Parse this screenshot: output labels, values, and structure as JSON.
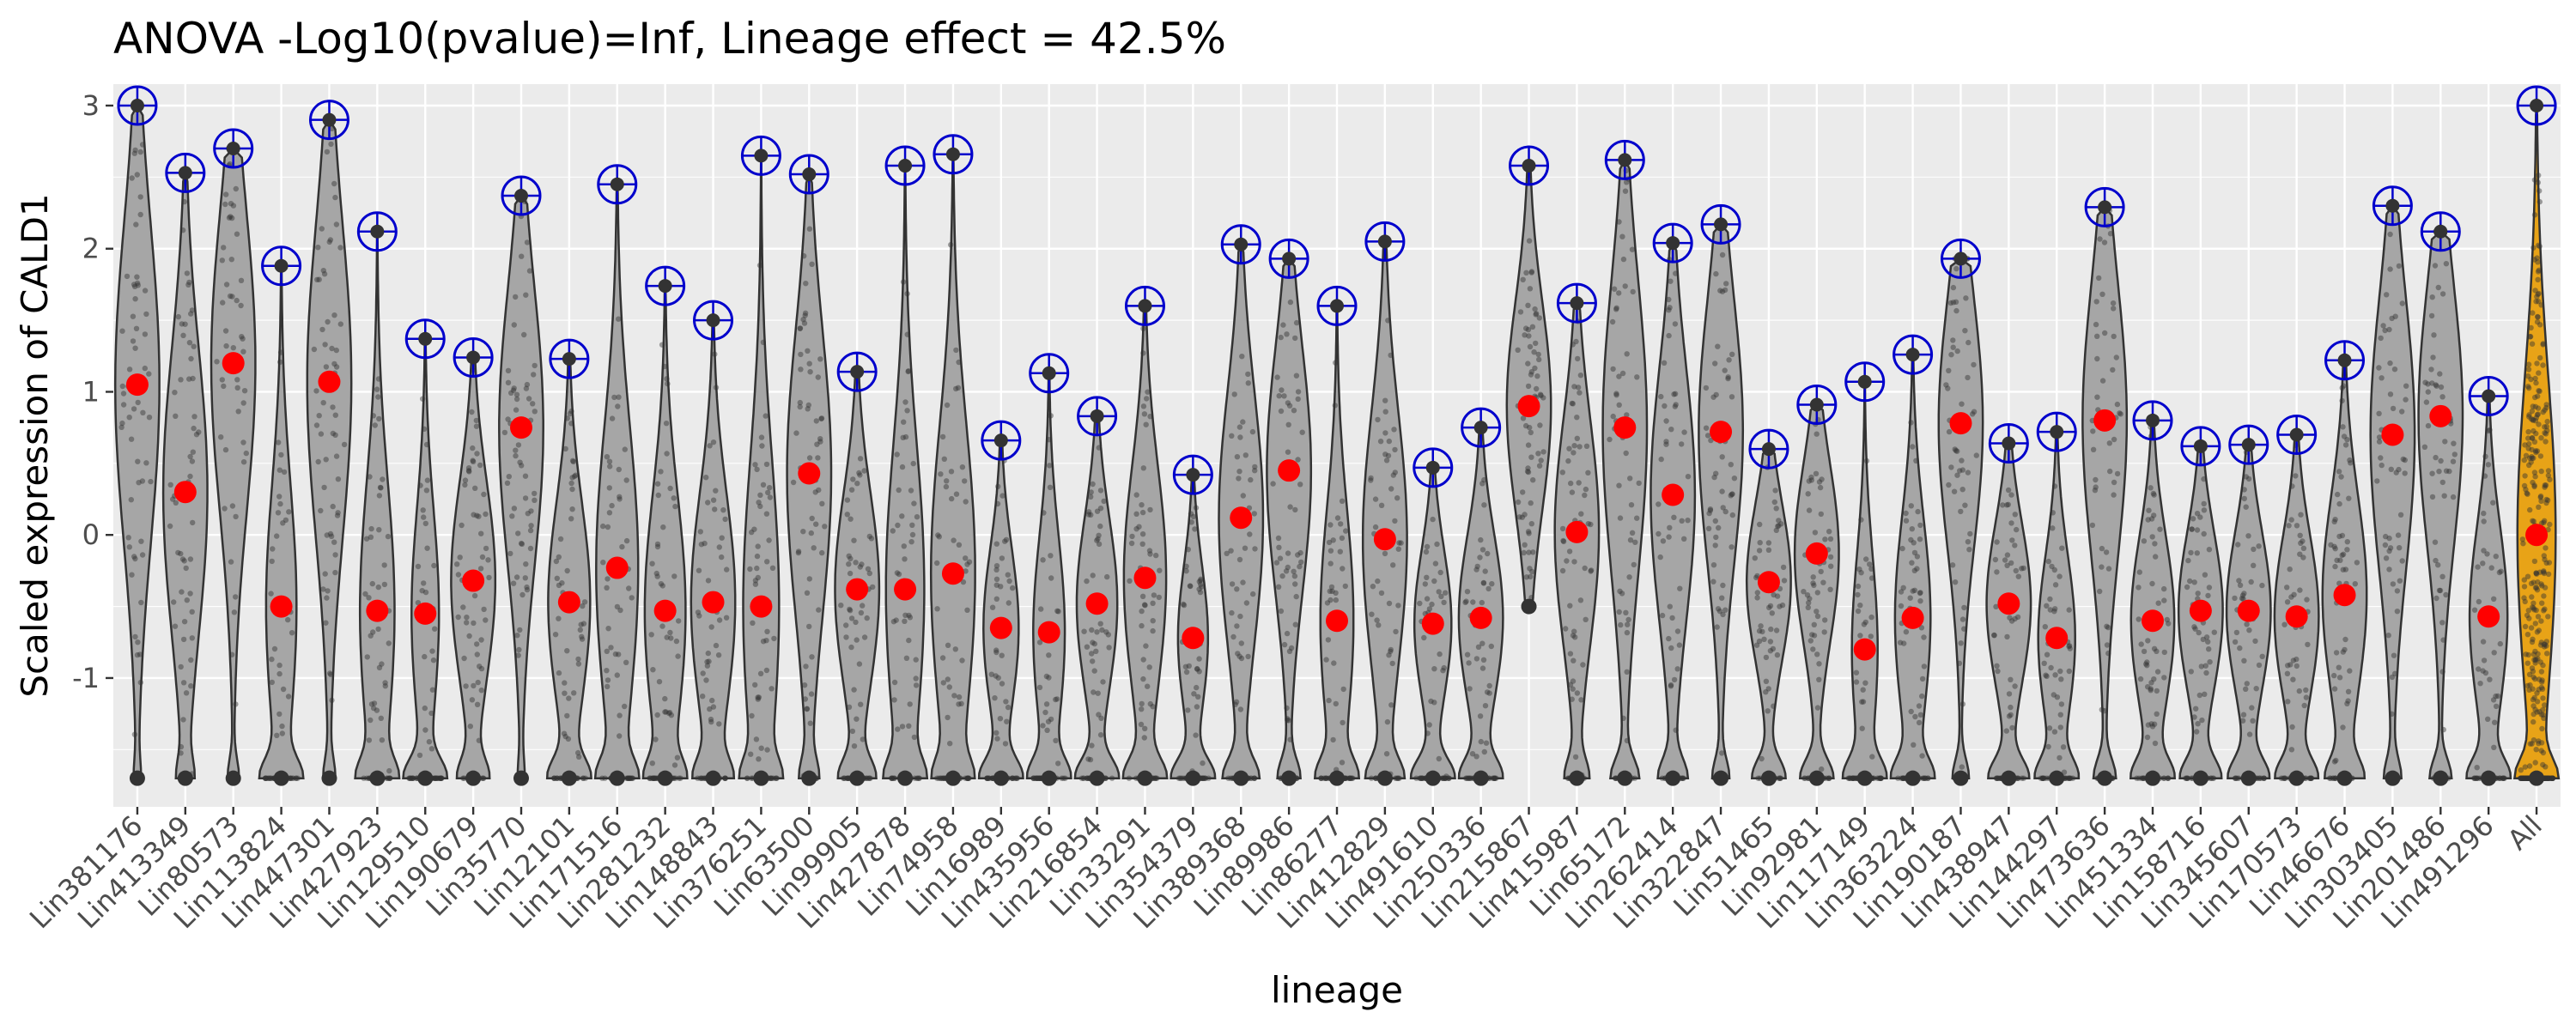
{
  "chart_data": {
    "type": "violin",
    "title": "ANOVA -Log10(pvalue)=Inf, Lineage effect = 42.5%",
    "xlabel": "lineage",
    "ylabel": "Scaled expression of CALD1",
    "ylim": [
      -1.9,
      3.15
    ],
    "yticks": [
      -1,
      0,
      1,
      2,
      3
    ],
    "floor_value": -1.7,
    "grid": true,
    "legend": "none",
    "colors": {
      "panel": "#ebebeb",
      "grid": "#ffffff",
      "violin_fill": "#a6a6a6",
      "violin_stroke": "#333333",
      "all_fill": "#e8a317",
      "mean_point": "#ff0000",
      "max_marker": "#0000cc",
      "jitter": "#333333"
    },
    "categories": [
      "Lin381176",
      "Lin413349",
      "Lin80573",
      "Lin113824",
      "Lin447301",
      "Lin427923",
      "Lin129510",
      "Lin190679",
      "Lin35770",
      "Lin12101",
      "Lin171516",
      "Lin281232",
      "Lin148843",
      "Lin376251",
      "Lin63500",
      "Lin99905",
      "Lin427878",
      "Lin74958",
      "Lin16989",
      "Lin435956",
      "Lin216854",
      "Lin33291",
      "Lin354379",
      "Lin389368",
      "Lin89986",
      "Lin86277",
      "Lin412829",
      "Lin491610",
      "Lin250336",
      "Lin215867",
      "Lin415987",
      "Lin65172",
      "Lin262414",
      "Lin322847",
      "Lin51465",
      "Lin92981",
      "Lin117149",
      "Lin363224",
      "Lin190187",
      "Lin438947",
      "Lin144297",
      "Lin473636",
      "Lin451334",
      "Lin158716",
      "Lin345607",
      "Lin170573",
      "Lin46676",
      "Lin303405",
      "Lin201486",
      "Lin491296",
      "All"
    ],
    "means": [
      1.05,
      0.3,
      1.2,
      -0.5,
      1.07,
      -0.53,
      -0.55,
      -0.32,
      0.75,
      -0.47,
      -0.23,
      -0.53,
      -0.47,
      -0.5,
      0.43,
      -0.38,
      -0.38,
      -0.27,
      -0.65,
      -0.68,
      -0.48,
      -0.3,
      -0.72,
      0.12,
      0.45,
      -0.6,
      -0.03,
      -0.62,
      -0.58,
      0.9,
      0.02,
      0.75,
      0.28,
      0.72,
      -0.33,
      -0.13,
      -0.8,
      -0.58,
      0.78,
      -0.48,
      -0.72,
      0.8,
      -0.6,
      -0.53,
      -0.53,
      -0.57,
      -0.42,
      0.7,
      0.83,
      -0.57,
      0.0
    ],
    "maxima": [
      3.0,
      2.53,
      2.7,
      1.88,
      2.9,
      2.12,
      1.37,
      1.24,
      2.37,
      1.23,
      2.45,
      1.74,
      1.5,
      2.65,
      2.52,
      1.14,
      2.58,
      2.66,
      0.66,
      1.13,
      0.83,
      1.6,
      0.42,
      2.03,
      1.93,
      1.6,
      2.05,
      0.47,
      0.75,
      2.58,
      1.62,
      2.62,
      2.04,
      2.17,
      0.6,
      0.91,
      1.07,
      1.26,
      1.93,
      0.64,
      0.72,
      2.29,
      0.8,
      0.62,
      0.63,
      0.7,
      1.22,
      2.3,
      2.12,
      0.97,
      3.0
    ],
    "minima": [
      -1.7,
      -1.7,
      -1.7,
      -1.7,
      -1.7,
      -1.7,
      -1.7,
      -1.7,
      -1.7,
      -1.7,
      -1.7,
      -1.7,
      -1.7,
      -1.7,
      -1.7,
      -1.7,
      -1.7,
      -1.7,
      -1.7,
      -1.7,
      -1.7,
      -1.7,
      -1.7,
      -1.7,
      -1.7,
      -1.7,
      -1.7,
      -1.7,
      -1.7,
      -0.5,
      -1.7,
      -1.7,
      -1.7,
      -1.7,
      -1.7,
      -1.7,
      -1.7,
      -1.7,
      -1.7,
      -1.7,
      -1.7,
      -1.7,
      -1.7,
      -1.7,
      -1.7,
      -1.7,
      -1.7,
      -1.7,
      -1.7,
      -1.7,
      -1.7
    ],
    "floor_share": [
      0.05,
      0.12,
      0.1,
      0.45,
      0.1,
      0.35,
      0.55,
      0.25,
      0.05,
      0.35,
      0.3,
      0.3,
      0.28,
      0.3,
      0.15,
      0.3,
      0.3,
      0.25,
      0.45,
      0.45,
      0.4,
      0.35,
      0.55,
      0.3,
      0.2,
      0.4,
      0.3,
      0.45,
      0.35,
      0.0,
      0.2,
      0.25,
      0.25,
      0.15,
      0.3,
      0.3,
      0.55,
      0.4,
      0.15,
      0.35,
      0.4,
      0.2,
      0.35,
      0.35,
      0.35,
      0.35,
      0.3,
      0.15,
      0.2,
      0.4,
      0.35
    ]
  }
}
